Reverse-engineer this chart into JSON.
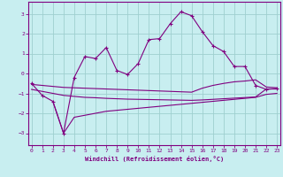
{
  "xlabel": "Windchill (Refroidissement éolien,°C)",
  "bg_color": "#c8eef0",
  "grid_color": "#9fcfcf",
  "line_color": "#800080",
  "x_ticks": [
    0,
    1,
    2,
    3,
    4,
    5,
    6,
    7,
    8,
    9,
    10,
    11,
    12,
    13,
    14,
    15,
    16,
    17,
    18,
    19,
    20,
    21,
    22,
    23
  ],
  "y_ticks": [
    -3,
    -2,
    -1,
    0,
    1,
    2,
    3
  ],
  "ylim": [
    -3.6,
    3.6
  ],
  "xlim": [
    -0.3,
    23.3
  ],
  "curve1_x": [
    0,
    1,
    2,
    3,
    4,
    5,
    6,
    7,
    8,
    9,
    10,
    11,
    12,
    13,
    14,
    15,
    16,
    17,
    18,
    19,
    20,
    21,
    22,
    23
  ],
  "curve1_y": [
    -0.5,
    -1.1,
    -1.4,
    -3.0,
    -0.2,
    0.85,
    0.75,
    1.3,
    0.15,
    -0.05,
    0.5,
    1.7,
    1.75,
    2.5,
    3.1,
    2.9,
    2.1,
    1.4,
    1.1,
    0.35,
    0.35,
    -0.6,
    -0.8,
    -0.75
  ],
  "curve2_x": [
    0,
    1,
    2,
    3,
    4,
    5,
    6,
    7,
    8,
    9,
    10,
    11,
    12,
    13,
    14,
    15,
    16,
    17,
    18,
    19,
    20,
    21,
    22,
    23
  ],
  "curve2_y": [
    -0.55,
    -0.6,
    -0.65,
    -0.7,
    -0.72,
    -0.74,
    -0.76,
    -0.78,
    -0.8,
    -0.82,
    -0.84,
    -0.86,
    -0.88,
    -0.9,
    -0.92,
    -0.94,
    -0.74,
    -0.6,
    -0.5,
    -0.42,
    -0.38,
    -0.32,
    -0.68,
    -0.72
  ],
  "curve3_x": [
    0,
    1,
    2,
    3,
    4,
    5,
    6,
    7,
    8,
    9,
    10,
    11,
    12,
    13,
    14,
    15,
    16,
    17,
    18,
    19,
    20,
    21,
    22,
    23
  ],
  "curve3_y": [
    -0.8,
    -0.9,
    -1.0,
    -1.1,
    -1.15,
    -1.2,
    -1.22,
    -1.25,
    -1.27,
    -1.29,
    -1.3,
    -1.31,
    -1.32,
    -1.33,
    -1.34,
    -1.35,
    -1.33,
    -1.3,
    -1.27,
    -1.24,
    -1.21,
    -1.18,
    -0.78,
    -0.78
  ],
  "curve4_x": [
    2,
    3,
    4,
    5,
    6,
    7,
    8,
    9,
    10,
    11,
    12,
    13,
    14,
    15,
    16,
    17,
    18,
    19,
    20,
    21,
    22,
    23
  ],
  "curve4_y": [
    -1.4,
    -3.0,
    -2.2,
    -2.1,
    -2.0,
    -1.9,
    -1.85,
    -1.8,
    -1.75,
    -1.7,
    -1.65,
    -1.6,
    -1.55,
    -1.5,
    -1.45,
    -1.4,
    -1.35,
    -1.3,
    -1.25,
    -1.2,
    -1.05,
    -1.0
  ]
}
